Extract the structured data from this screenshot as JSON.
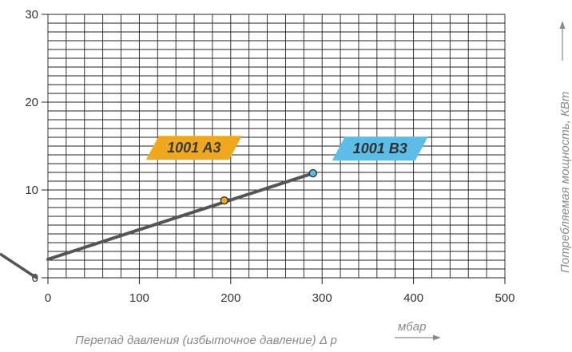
{
  "chart_data": {
    "type": "line",
    "xlabel": "Перепад давления (избыточное давление) Δ p",
    "xunit": "мбар",
    "ylabel": "Потребляемая мощность, КВт",
    "xlim": [
      0,
      500
    ],
    "ylim": [
      0,
      30
    ],
    "xticks": [
      "0",
      "100",
      "200",
      "300",
      "400",
      "500"
    ],
    "yticks": [
      "0",
      "10",
      "20",
      "30"
    ],
    "grid": true,
    "series": [
      {
        "color": "#555555",
        "x": [
          0,
          290
        ],
        "y": [
          2.1,
          11.9
        ]
      }
    ],
    "points": [
      {
        "label": "1001 A3",
        "x": 193,
        "y": 8.8,
        "color": "#f0a81e",
        "label_text_color": "#3a3a3a"
      },
      {
        "label": "1001 B3",
        "x": 290,
        "y": 11.9,
        "color": "#5bbde8",
        "label_text_color": "#2f2f2f"
      }
    ]
  },
  "colors": {
    "grid": "#222222",
    "axis_text": "#333333",
    "axis_title": "#8a8a8a"
  }
}
